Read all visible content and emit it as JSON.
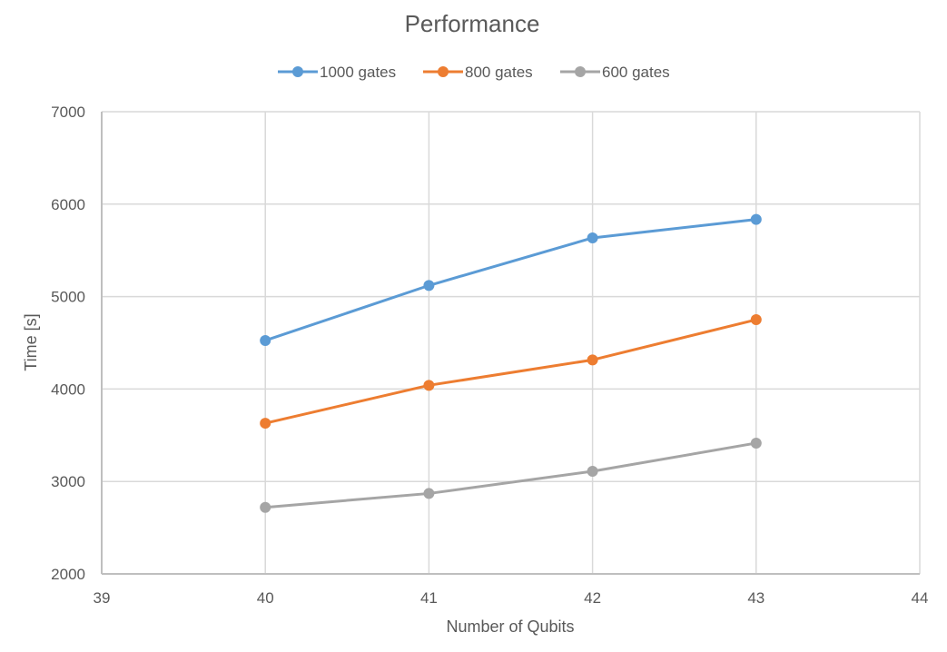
{
  "chart_data": {
    "type": "line",
    "title": "Performance",
    "xlabel": "Number of Qubits",
    "ylabel": "Time [s]",
    "xlim": [
      39,
      44
    ],
    "ylim": [
      2000,
      7000
    ],
    "x_ticks": [
      39,
      40,
      41,
      42,
      43,
      44
    ],
    "y_ticks": [
      2000,
      3000,
      4000,
      5000,
      6000,
      7000
    ],
    "grid": true,
    "legend_position": "top",
    "x": [
      40,
      41,
      42,
      43
    ],
    "series": [
      {
        "name": "1000 gates",
        "color": "#5B9BD5",
        "values": [
          4525,
          5120,
          5635,
          5835
        ]
      },
      {
        "name": "800 gates",
        "color": "#ED7D31",
        "values": [
          3630,
          4040,
          4315,
          4750
        ]
      },
      {
        "name": "600 gates",
        "color": "#A5A5A5",
        "values": [
          2720,
          2870,
          3110,
          3415
        ]
      }
    ]
  }
}
